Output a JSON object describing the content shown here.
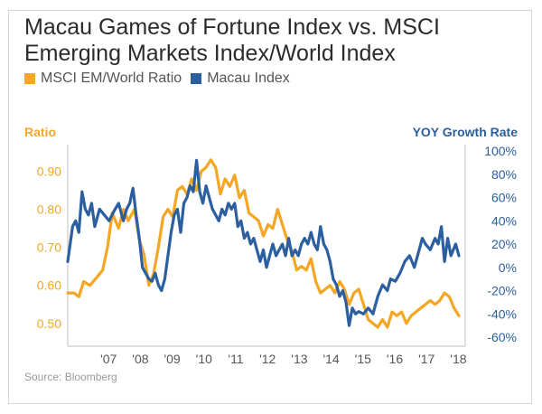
{
  "title": "Macau Games of Fortune Index vs. MSCI Emerging Markets Index/World Index",
  "legend": {
    "items": [
      {
        "label": "MSCI EM/World Ratio",
        "color": "#f5a623"
      },
      {
        "label": "Macau Index",
        "color": "#2b5fa0"
      }
    ]
  },
  "source": "Source: Bloomberg",
  "chart_data": {
    "type": "line",
    "left_axis": {
      "label": "Ratio",
      "color": "#f5a623",
      "ticks": [
        "0.90",
        "0.80",
        "0.70",
        "0.60",
        "0.50"
      ],
      "tick_values": [
        0.9,
        0.8,
        0.7,
        0.6,
        0.5
      ],
      "range": [
        0.44,
        0.97
      ]
    },
    "right_axis": {
      "label": "YOY Growth Rate",
      "color": "#2b5fa0",
      "ticks": [
        "100%",
        "80%",
        "60%",
        "40%",
        "20%",
        "0%",
        "-20%",
        "-40%",
        "-60%"
      ],
      "tick_values": [
        100,
        80,
        60,
        40,
        20,
        0,
        -20,
        -40,
        -60
      ],
      "range": [
        -60,
        100
      ]
    },
    "x_axis": {
      "ticks": [
        "'07",
        "'08",
        "'09",
        "'10",
        "'11",
        "'12",
        "'13",
        "'14",
        "'15",
        "'16",
        "'17",
        "'18"
      ],
      "tick_values": [
        2007,
        2008,
        2009,
        2010,
        2011,
        2012,
        2013,
        2014,
        2015,
        2016,
        2017,
        2018
      ],
      "range": [
        2006.0,
        2018.5
      ]
    },
    "grid": false,
    "series": [
      {
        "name": "MSCI EM/World Ratio",
        "axis": "left",
        "color": "#f5a623",
        "points": [
          [
            2006.0,
            0.58
          ],
          [
            2006.2,
            0.58
          ],
          [
            2006.35,
            0.57
          ],
          [
            2006.5,
            0.61
          ],
          [
            2006.7,
            0.6
          ],
          [
            2006.9,
            0.62
          ],
          [
            2007.1,
            0.64
          ],
          [
            2007.25,
            0.7
          ],
          [
            2007.4,
            0.79
          ],
          [
            2007.6,
            0.75
          ],
          [
            2007.75,
            0.8
          ],
          [
            2007.9,
            0.77
          ],
          [
            2008.1,
            0.8
          ],
          [
            2008.25,
            0.72
          ],
          [
            2008.4,
            0.68
          ],
          [
            2008.55,
            0.6
          ],
          [
            2008.7,
            0.63
          ],
          [
            2008.85,
            0.7
          ],
          [
            2009.0,
            0.78
          ],
          [
            2009.15,
            0.8
          ],
          [
            2009.3,
            0.78
          ],
          [
            2009.45,
            0.85
          ],
          [
            2009.6,
            0.86
          ],
          [
            2009.75,
            0.84
          ],
          [
            2009.9,
            0.88
          ],
          [
            2010.05,
            0.85
          ],
          [
            2010.2,
            0.9
          ],
          [
            2010.35,
            0.91
          ],
          [
            2010.5,
            0.93
          ],
          [
            2010.65,
            0.91
          ],
          [
            2010.8,
            0.84
          ],
          [
            2010.95,
            0.88
          ],
          [
            2011.1,
            0.86
          ],
          [
            2011.25,
            0.89
          ],
          [
            2011.4,
            0.83
          ],
          [
            2011.55,
            0.85
          ],
          [
            2011.7,
            0.79
          ],
          [
            2011.85,
            0.78
          ],
          [
            2012.0,
            0.77
          ],
          [
            2012.15,
            0.73
          ],
          [
            2012.3,
            0.76
          ],
          [
            2012.45,
            0.75
          ],
          [
            2012.6,
            0.8
          ],
          [
            2012.75,
            0.76
          ],
          [
            2012.9,
            0.72
          ],
          [
            2013.05,
            0.69
          ],
          [
            2013.2,
            0.64
          ],
          [
            2013.35,
            0.65
          ],
          [
            2013.5,
            0.64
          ],
          [
            2013.65,
            0.67
          ],
          [
            2013.8,
            0.61
          ],
          [
            2013.95,
            0.58
          ],
          [
            2014.1,
            0.59
          ],
          [
            2014.25,
            0.6
          ],
          [
            2014.4,
            0.58
          ],
          [
            2014.55,
            0.61
          ],
          [
            2014.7,
            0.59
          ],
          [
            2014.85,
            0.55
          ],
          [
            2015.0,
            0.58
          ],
          [
            2015.15,
            0.59
          ],
          [
            2015.3,
            0.55
          ],
          [
            2015.45,
            0.51
          ],
          [
            2015.6,
            0.5
          ],
          [
            2015.75,
            0.49
          ],
          [
            2015.9,
            0.51
          ],
          [
            2016.05,
            0.49
          ],
          [
            2016.2,
            0.53
          ],
          [
            2016.35,
            0.52
          ],
          [
            2016.5,
            0.53
          ],
          [
            2016.65,
            0.5
          ],
          [
            2016.8,
            0.52
          ],
          [
            2016.95,
            0.53
          ],
          [
            2017.1,
            0.54
          ],
          [
            2017.25,
            0.55
          ],
          [
            2017.4,
            0.56
          ],
          [
            2017.55,
            0.55
          ],
          [
            2017.7,
            0.56
          ],
          [
            2017.85,
            0.58
          ],
          [
            2018.0,
            0.57
          ],
          [
            2018.15,
            0.54
          ],
          [
            2018.3,
            0.52
          ]
        ]
      },
      {
        "name": "Macau Index",
        "axis": "right",
        "color": "#2b5fa0",
        "points": [
          [
            2006.0,
            5
          ],
          [
            2006.15,
            35
          ],
          [
            2006.25,
            40
          ],
          [
            2006.35,
            30
          ],
          [
            2006.45,
            65
          ],
          [
            2006.55,
            50
          ],
          [
            2006.65,
            45
          ],
          [
            2006.75,
            55
          ],
          [
            2006.85,
            35
          ],
          [
            2007.0,
            50
          ],
          [
            2007.15,
            45
          ],
          [
            2007.3,
            40
          ],
          [
            2007.45,
            48
          ],
          [
            2007.6,
            55
          ],
          [
            2007.75,
            40
          ],
          [
            2007.85,
            50
          ],
          [
            2007.95,
            55
          ],
          [
            2008.05,
            68
          ],
          [
            2008.15,
            45
          ],
          [
            2008.25,
            25
          ],
          [
            2008.35,
            0
          ],
          [
            2008.45,
            -5
          ],
          [
            2008.55,
            -10
          ],
          [
            2008.65,
            -12
          ],
          [
            2008.75,
            -5
          ],
          [
            2008.85,
            -15
          ],
          [
            2008.95,
            -20
          ],
          [
            2009.05,
            -10
          ],
          [
            2009.15,
            10
          ],
          [
            2009.25,
            30
          ],
          [
            2009.35,
            45
          ],
          [
            2009.45,
            50
          ],
          [
            2009.55,
            30
          ],
          [
            2009.65,
            55
          ],
          [
            2009.75,
            60
          ],
          [
            2009.85,
            70
          ],
          [
            2009.95,
            65
          ],
          [
            2010.05,
            92
          ],
          [
            2010.15,
            65
          ],
          [
            2010.25,
            55
          ],
          [
            2010.35,
            70
          ],
          [
            2010.45,
            60
          ],
          [
            2010.55,
            50
          ],
          [
            2010.65,
            45
          ],
          [
            2010.75,
            40
          ],
          [
            2010.85,
            50
          ],
          [
            2010.95,
            45
          ],
          [
            2011.05,
            55
          ],
          [
            2011.15,
            50
          ],
          [
            2011.25,
            55
          ],
          [
            2011.35,
            35
          ],
          [
            2011.45,
            40
          ],
          [
            2011.55,
            25
          ],
          [
            2011.65,
            30
          ],
          [
            2011.75,
            20
          ],
          [
            2011.85,
            25
          ],
          [
            2011.95,
            15
          ],
          [
            2012.05,
            5
          ],
          [
            2012.15,
            15
          ],
          [
            2012.25,
            0
          ],
          [
            2012.35,
            10
          ],
          [
            2012.45,
            20
          ],
          [
            2012.55,
            10
          ],
          [
            2012.65,
            15
          ],
          [
            2012.75,
            20
          ],
          [
            2012.85,
            10
          ],
          [
            2012.95,
            25
          ],
          [
            2013.05,
            10
          ],
          [
            2013.15,
            15
          ],
          [
            2013.25,
            10
          ],
          [
            2013.35,
            20
          ],
          [
            2013.45,
            25
          ],
          [
            2013.55,
            20
          ],
          [
            2013.65,
            30
          ],
          [
            2013.75,
            20
          ],
          [
            2013.85,
            15
          ],
          [
            2013.95,
            35
          ],
          [
            2014.05,
            20
          ],
          [
            2014.15,
            15
          ],
          [
            2014.25,
            5
          ],
          [
            2014.35,
            -10
          ],
          [
            2014.45,
            -15
          ],
          [
            2014.55,
            -25
          ],
          [
            2014.65,
            -20
          ],
          [
            2014.75,
            -30
          ],
          [
            2014.85,
            -50
          ],
          [
            2014.95,
            -35
          ],
          [
            2015.05,
            -40
          ],
          [
            2015.15,
            -38
          ],
          [
            2015.3,
            -40
          ],
          [
            2015.45,
            -35
          ],
          [
            2015.6,
            -40
          ],
          [
            2015.75,
            -25
          ],
          [
            2015.9,
            -15
          ],
          [
            2016.05,
            -20
          ],
          [
            2016.15,
            -10
          ],
          [
            2016.3,
            -12
          ],
          [
            2016.45,
            -5
          ],
          [
            2016.6,
            5
          ],
          [
            2016.75,
            10
          ],
          [
            2016.9,
            0
          ],
          [
            2017.05,
            15
          ],
          [
            2017.15,
            25
          ],
          [
            2017.25,
            20
          ],
          [
            2017.4,
            15
          ],
          [
            2017.55,
            25
          ],
          [
            2017.65,
            20
          ],
          [
            2017.75,
            35
          ],
          [
            2017.85,
            5
          ],
          [
            2017.95,
            25
          ],
          [
            2018.05,
            10
          ],
          [
            2018.2,
            20
          ],
          [
            2018.3,
            10
          ]
        ]
      }
    ]
  }
}
